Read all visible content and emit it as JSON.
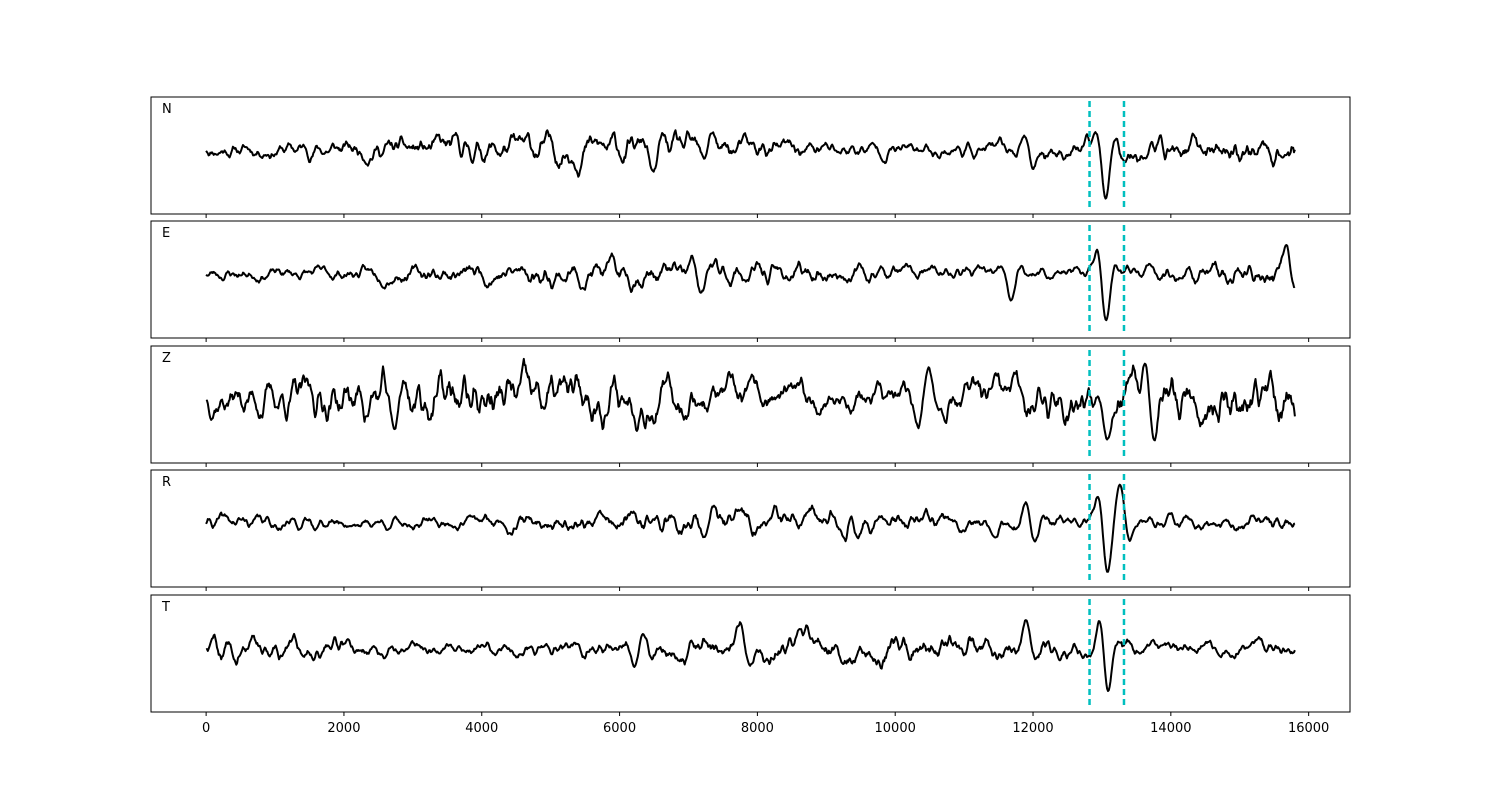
{
  "chart_data": {
    "type": "line",
    "x_min": 0,
    "x_max": 15800,
    "xlim": [
      -800,
      16600
    ],
    "xticks": [
      0,
      2000,
      4000,
      6000,
      8000,
      10000,
      12000,
      14000,
      16000
    ],
    "xtick_labels": [
      "0",
      "2000",
      "4000",
      "6000",
      "8000",
      "10000",
      "12000",
      "14000",
      "16000"
    ],
    "markers": [
      12820,
      13320
    ],
    "marker_color": "#00bfbf",
    "line_color": "#000000",
    "grid": false,
    "panels": [
      {
        "label": "N",
        "seed": 11,
        "amp": 0.55,
        "events": [
          [
            6500,
            0.55
          ],
          [
            7300,
            0.45
          ],
          [
            11950,
            0.5
          ],
          [
            13050,
            1.0
          ]
        ]
      },
      {
        "label": "E",
        "seed": 23,
        "amp": 0.5,
        "events": [
          [
            7200,
            0.45
          ],
          [
            11700,
            0.5
          ],
          [
            13030,
            1.0
          ],
          [
            15700,
            0.6
          ]
        ]
      },
      {
        "label": "Z",
        "seed": 37,
        "amp": 0.9,
        "events": [
          [
            2750,
            0.7
          ],
          [
            10400,
            0.6
          ],
          [
            13050,
            0.7
          ],
          [
            13700,
            0.95
          ]
        ]
      },
      {
        "label": "R",
        "seed": 41,
        "amp": 0.5,
        "events": [
          [
            7300,
            0.55
          ],
          [
            11950,
            0.55
          ],
          [
            13050,
            1.0
          ],
          [
            13300,
            0.7
          ]
        ]
      },
      {
        "label": "T",
        "seed": 59,
        "amp": 0.55,
        "events": [
          [
            6300,
            0.55
          ],
          [
            7800,
            0.5
          ],
          [
            11900,
            0.6
          ],
          [
            13050,
            1.0
          ]
        ]
      }
    ]
  }
}
